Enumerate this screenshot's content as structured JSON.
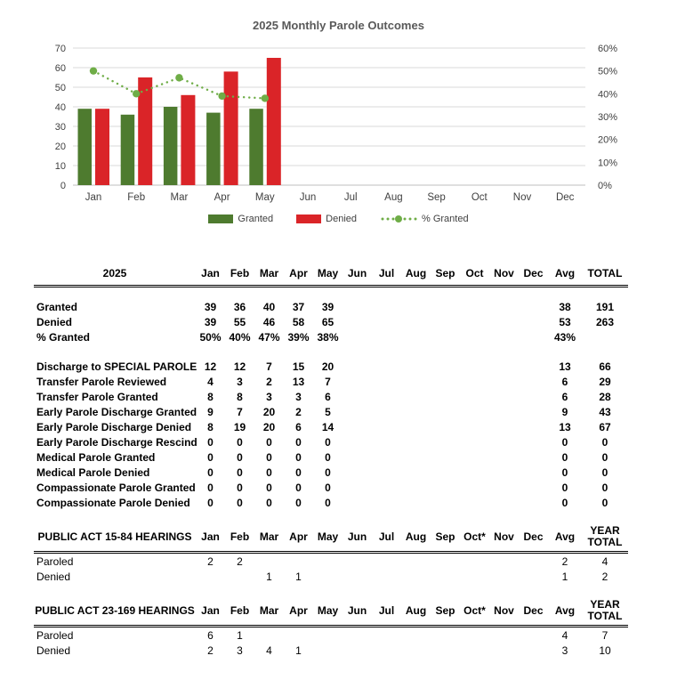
{
  "colors": {
    "title_text": "#595959",
    "axis_text": "#404040",
    "gridline": "#d9d9d9",
    "axis_line": "#bfbfbf",
    "table_text": "#000000"
  },
  "chart_data": {
    "type": "combo-bar-line",
    "title": "2025 Monthly Parole Outcomes",
    "categories": [
      "Jan",
      "Feb",
      "Mar",
      "Apr",
      "May",
      "Jun",
      "Jul",
      "Aug",
      "Sep",
      "Oct",
      "Nov",
      "Dec"
    ],
    "series": [
      {
        "name": "Granted",
        "type": "bar",
        "color": "#4e7b2f",
        "values": [
          39,
          36,
          40,
          37,
          39,
          null,
          null,
          null,
          null,
          null,
          null,
          null
        ]
      },
      {
        "name": "Denied",
        "type": "bar",
        "color": "#da2428",
        "values": [
          39,
          55,
          46,
          58,
          65,
          null,
          null,
          null,
          null,
          null,
          null,
          null
        ]
      },
      {
        "name": "% Granted",
        "type": "line",
        "axis": "right",
        "color": "#6fad47",
        "unit": "%",
        "values": [
          50,
          40,
          47,
          39,
          38,
          null,
          null,
          null,
          null,
          null,
          null,
          null
        ]
      }
    ],
    "left_axis": {
      "min": 0,
      "max": 70,
      "step": 10,
      "labels": [
        "0",
        "10",
        "20",
        "30",
        "40",
        "50",
        "60",
        "70"
      ]
    },
    "right_axis": {
      "min": 0,
      "max": 60,
      "step": 10,
      "labels": [
        "0%",
        "10%",
        "20%",
        "30%",
        "40%",
        "50%",
        "60%"
      ]
    },
    "legend": {
      "granted": "Granted",
      "denied": "Denied",
      "pct": "% Granted"
    },
    "grid": true,
    "legend_position": "bottom"
  },
  "main_table": {
    "year_label": "2025",
    "months": [
      "Jan",
      "Feb",
      "Mar",
      "Apr",
      "May",
      "Jun",
      "Jul",
      "Aug",
      "Sep",
      "Oct",
      "Nov",
      "Dec"
    ],
    "avg_label": "Avg",
    "total_label": "TOTAL",
    "sections": [
      {
        "rows": [
          {
            "label": "Granted",
            "values": [
              "39",
              "36",
              "40",
              "37",
              "39",
              "",
              "",
              "",
              "",
              "",
              "",
              ""
            ],
            "avg": "38",
            "total": "191"
          },
          {
            "label": "Denied",
            "values": [
              "39",
              "55",
              "46",
              "58",
              "65",
              "",
              "",
              "",
              "",
              "",
              "",
              ""
            ],
            "avg": "53",
            "total": "263"
          },
          {
            "label": "% Granted",
            "values": [
              "50%",
              "40%",
              "47%",
              "39%",
              "38%",
              "",
              "",
              "",
              "",
              "",
              "",
              ""
            ],
            "avg": "43%",
            "total": ""
          }
        ]
      },
      {
        "rows": [
          {
            "label": "Discharge to SPECIAL PAROLE",
            "values": [
              "12",
              "12",
              "7",
              "15",
              "20",
              "",
              "",
              "",
              "",
              "",
              "",
              ""
            ],
            "avg": "13",
            "total": "66"
          },
          {
            "label": "Transfer Parole Reviewed",
            "values": [
              "4",
              "3",
              "2",
              "13",
              "7",
              "",
              "",
              "",
              "",
              "",
              "",
              ""
            ],
            "avg": "6",
            "total": "29"
          },
          {
            "label": "Transfer Parole Granted",
            "values": [
              "8",
              "8",
              "3",
              "3",
              "6",
              "",
              "",
              "",
              "",
              "",
              "",
              ""
            ],
            "avg": "6",
            "total": "28"
          },
          {
            "label": "Early Parole Discharge Granted",
            "values": [
              "9",
              "7",
              "20",
              "2",
              "5",
              "",
              "",
              "",
              "",
              "",
              "",
              ""
            ],
            "avg": "9",
            "total": "43"
          },
          {
            "label": "Early Parole Discharge Denied",
            "values": [
              "8",
              "19",
              "20",
              "6",
              "14",
              "",
              "",
              "",
              "",
              "",
              "",
              ""
            ],
            "avg": "13",
            "total": "67"
          },
          {
            "label": "Early Parole Discharge Rescind",
            "values": [
              "0",
              "0",
              "0",
              "0",
              "0",
              "",
              "",
              "",
              "",
              "",
              "",
              ""
            ],
            "avg": "0",
            "total": "0"
          },
          {
            "label": "Medical Parole Granted",
            "values": [
              "0",
              "0",
              "0",
              "0",
              "0",
              "",
              "",
              "",
              "",
              "",
              "",
              ""
            ],
            "avg": "0",
            "total": "0"
          },
          {
            "label": "Medical Parole Denied",
            "values": [
              "0",
              "0",
              "0",
              "0",
              "0",
              "",
              "",
              "",
              "",
              "",
              "",
              ""
            ],
            "avg": "0",
            "total": "0"
          },
          {
            "label": "Compassionate Parole Granted",
            "values": [
              "0",
              "0",
              "0",
              "0",
              "0",
              "",
              "",
              "",
              "",
              "",
              "",
              ""
            ],
            "avg": "0",
            "total": "0"
          },
          {
            "label": "Compassionate Parole Denied",
            "values": [
              "0",
              "0",
              "0",
              "0",
              "0",
              "",
              "",
              "",
              "",
              "",
              "",
              ""
            ],
            "avg": "0",
            "total": "0"
          }
        ]
      }
    ]
  },
  "hearings_tables": [
    {
      "title": "PUBLIC ACT 15-84 HEARINGS",
      "months": [
        "Jan",
        "Feb",
        "Mar",
        "Apr",
        "May",
        "Jun",
        "Jul",
        "Aug",
        "Sep",
        "Oct*",
        "Nov",
        "Dec"
      ],
      "avg_label": "Avg",
      "total_label": "YEAR TOTAL",
      "rows": [
        {
          "label": "Paroled",
          "values": [
            "2",
            "2",
            "",
            "",
            "",
            "",
            "",
            "",
            "",
            "",
            "",
            ""
          ],
          "avg": "2",
          "total": "4"
        },
        {
          "label": "Denied",
          "values": [
            "",
            "",
            "1",
            "1",
            "",
            "",
            "",
            "",
            "",
            "",
            "",
            ""
          ],
          "avg": "1",
          "total": "2"
        }
      ]
    },
    {
      "title": "PUBLIC ACT 23-169 HEARINGS",
      "months": [
        "Jan",
        "Feb",
        "Mar",
        "Apr",
        "May",
        "Jun",
        "Jul",
        "Aug",
        "Sep",
        "Oct*",
        "Nov",
        "Dec"
      ],
      "avg_label": "Avg",
      "total_label": "YEAR TOTAL",
      "rows": [
        {
          "label": "Paroled",
          "values": [
            "6",
            "1",
            "",
            "",
            "",
            "",
            "",
            "",
            "",
            "",
            "",
            ""
          ],
          "avg": "4",
          "total": "7"
        },
        {
          "label": "Denied",
          "values": [
            "2",
            "3",
            "4",
            "1",
            "",
            "",
            "",
            "",
            "",
            "",
            "",
            ""
          ],
          "avg": "3",
          "total": "10"
        }
      ]
    }
  ]
}
